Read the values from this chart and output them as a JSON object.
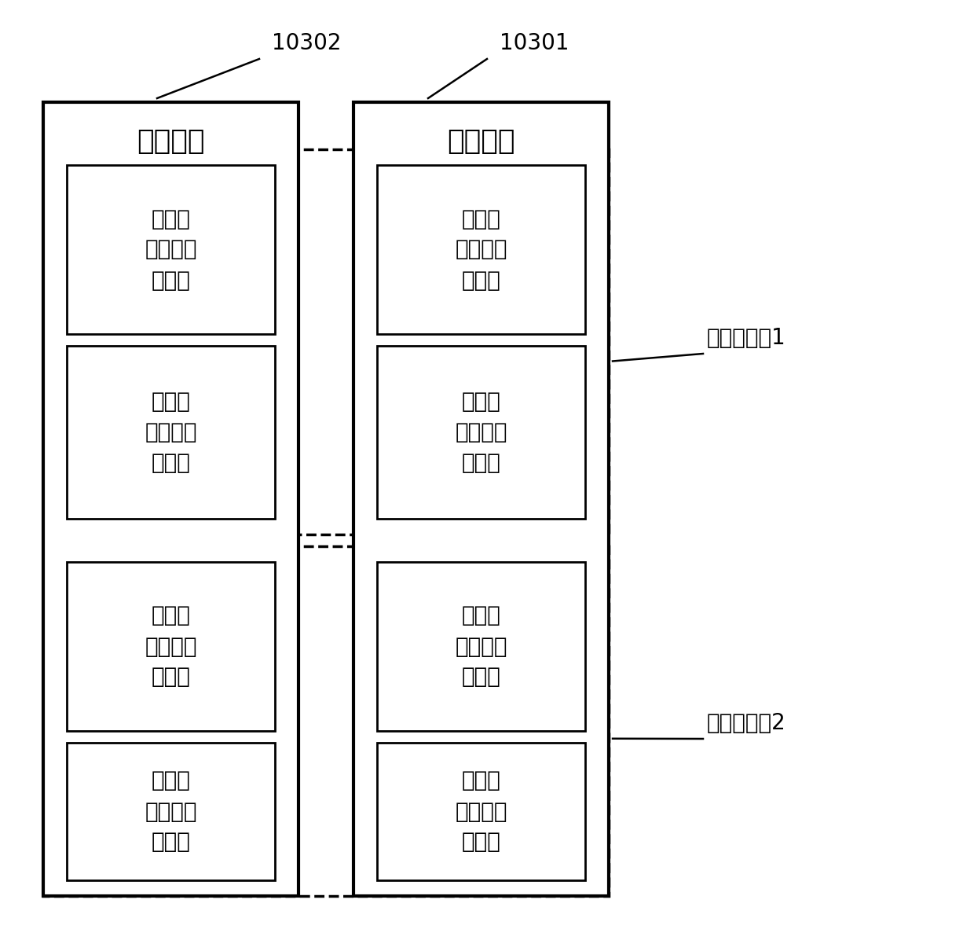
{
  "background_color": "#ffffff",
  "fig_width": 12.4,
  "fig_height": 11.96,
  "dpi": 100,
  "font_family": [
    "WenQuanYi Micro Hei",
    "Noto Sans CJK SC",
    "SimHei",
    "STSong",
    "Arial Unicode MS",
    "sans-serif"
  ],
  "fs_header": 26,
  "fs_inner": 20,
  "fs_annot": 20,
  "label_calc_unit": "计算单元",
  "label_mem_unit": "内存单元",
  "label_server1": "评分服务器1",
  "label_server2": "评分服务器2",
  "label_10302": "10302",
  "label_10301": "10301",
  "labels": {
    "c1m": "第一个\n计算单元\n（主）",
    "c1b": "第二个\n计算单元\n（备）",
    "m1m": "第一个\n内存单元\n（主）",
    "m1b": "第二个\n内存单元\n（备）",
    "c2m": "第二个\n计算单元\n（主）",
    "c2b": "第一个\n计算单元\n（备）",
    "m2m": "第二个\n内存单元\n（主）",
    "m2b": "第一个\n内存单元\n（备）"
  }
}
